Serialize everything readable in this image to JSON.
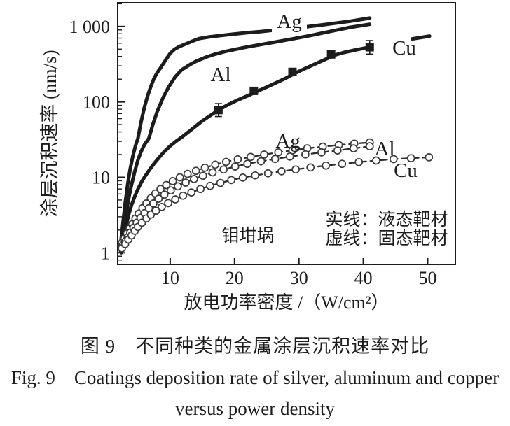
{
  "colors": {
    "ink": "#1c1c1c",
    "marker_stroke": "#3a3a3a",
    "background": "#ffffff"
  },
  "chart_data": {
    "type": "line",
    "title": "",
    "xlabel": "放电功率密度 /（W/cm²）",
    "ylabel": "涂层沉积速率 (nm/s)",
    "x_scale": "linear",
    "y_scale": "log",
    "xlim": [
      1.85,
      54.3
    ],
    "ylim": [
      0.7,
      2060
    ],
    "grid": false,
    "x_ticks": [
      10,
      20,
      30,
      40,
      50
    ],
    "y_ticks": [
      {
        "value": 1000,
        "label": "1 000"
      },
      {
        "value": 100,
        "label": "100"
      },
      {
        "value": 10,
        "label": "10"
      },
      {
        "value": 1,
        "label": "1"
      }
    ],
    "annotation": "钼坩埚",
    "legend": {
      "line1": "实线：液态靶材",
      "line2": "虚线：固态靶材"
    },
    "series": [
      {
        "name": "ag-liquid",
        "label": "Ag",
        "line": "solid",
        "target": "液态靶材",
        "points": [
          [
            2.2,
            1.1
          ],
          [
            2.6,
            2.2
          ],
          [
            3,
            4.5
          ],
          [
            3.4,
            8
          ],
          [
            3.8,
            13
          ],
          [
            4.2,
            19
          ],
          [
            4.6,
            26
          ],
          [
            5,
            33
          ],
          [
            5.5,
            55
          ],
          [
            6,
            85
          ],
          [
            6.5,
            120
          ],
          [
            7,
            160
          ],
          [
            7.5,
            205
          ],
          [
            8,
            245
          ],
          [
            8.6,
            290
          ],
          [
            9.3,
            360
          ],
          [
            10,
            440
          ],
          [
            10.7,
            500
          ],
          [
            11.5,
            545
          ],
          [
            12.5,
            590
          ],
          [
            13.5,
            640
          ],
          [
            14.5,
            690
          ],
          [
            16,
            725
          ],
          [
            18,
            760
          ],
          [
            20,
            795
          ],
          [
            22,
            825
          ],
          [
            24,
            855
          ],
          [
            26,
            890
          ],
          [
            28,
            925
          ],
          [
            30,
            965
          ],
          [
            32,
            1010
          ],
          [
            34,
            1060
          ],
          [
            36,
            1115
          ],
          [
            38,
            1175
          ],
          [
            39.5,
            1230
          ],
          [
            41,
            1290
          ]
        ]
      },
      {
        "name": "al-liquid",
        "label": "Al",
        "line": "solid",
        "target": "液态靶材",
        "points": [
          [
            2.3,
            1.05
          ],
          [
            2.7,
            1.8
          ],
          [
            3.1,
            3
          ],
          [
            3.5,
            5
          ],
          [
            4,
            8
          ],
          [
            4.5,
            12
          ],
          [
            5,
            17
          ],
          [
            5.5,
            22
          ],
          [
            6,
            27
          ],
          [
            6.7,
            33
          ],
          [
            7.3,
            50
          ],
          [
            8,
            75
          ],
          [
            8.9,
            114
          ],
          [
            9.8,
            160
          ],
          [
            10.8,
            215
          ],
          [
            11.8,
            267
          ],
          [
            13,
            310
          ],
          [
            14,
            345
          ],
          [
            15.5,
            390
          ],
          [
            17,
            430
          ],
          [
            18.5,
            465
          ],
          [
            20,
            495
          ],
          [
            22,
            535
          ],
          [
            24,
            575
          ],
          [
            26,
            615
          ],
          [
            28,
            660
          ],
          [
            30,
            710
          ],
          [
            32,
            765
          ],
          [
            34,
            830
          ],
          [
            36,
            900
          ],
          [
            38,
            975
          ],
          [
            39.5,
            1020
          ],
          [
            41,
            1070
          ]
        ]
      },
      {
        "name": "cu-liquid",
        "label": "Cu",
        "line": "solid",
        "target": "液态靶材",
        "points": [
          [
            2.4,
            1.0
          ],
          [
            2.8,
            1.6
          ],
          [
            3.2,
            2.4
          ],
          [
            3.6,
            3.3
          ],
          [
            4,
            4.3
          ],
          [
            4.5,
            5.6
          ],
          [
            5,
            7
          ],
          [
            5.5,
            8.5
          ],
          [
            6,
            10
          ],
          [
            6.7,
            12.3
          ],
          [
            7.4,
            14.8
          ],
          [
            8.2,
            18
          ],
          [
            9,
            21.5
          ],
          [
            10,
            26
          ],
          [
            11,
            30.5
          ],
          [
            11.8,
            34
          ],
          [
            13,
            41
          ],
          [
            14,
            48
          ],
          [
            15,
            56
          ],
          [
            16,
            64
          ],
          [
            17.5,
            78
          ],
          [
            19,
            92
          ],
          [
            20.5,
            106
          ],
          [
            22,
            120
          ],
          [
            23.5,
            138
          ],
          [
            25,
            157
          ],
          [
            26.5,
            180
          ],
          [
            28,
            207
          ],
          [
            29.5,
            242
          ],
          [
            31,
            278
          ],
          [
            32.5,
            318
          ],
          [
            34,
            362
          ],
          [
            35.5,
            415
          ],
          [
            37,
            452
          ],
          [
            38.5,
            482
          ],
          [
            40,
            512
          ],
          [
            41,
            530
          ]
        ],
        "extension": [
          [
            47.6,
            685
          ],
          [
            50.3,
            745
          ]
        ],
        "data_points": [
          {
            "x": 17.5,
            "y": 78,
            "err": [
              64,
              95
            ]
          },
          {
            "x": 23,
            "y": 140
          },
          {
            "x": 29,
            "y": 250
          },
          {
            "x": 35,
            "y": 426
          },
          {
            "x": 41,
            "y": 530,
            "err": [
              430,
              650
            ]
          }
        ]
      },
      {
        "name": "ag-solid-target",
        "label": "Ag",
        "line": "dashed",
        "target": "固态靶材",
        "markers": "circle",
        "points": [
          [
            2.5,
            1.35
          ],
          [
            2.9,
            1.55
          ],
          [
            3.3,
            1.8
          ],
          [
            3.7,
            2.1
          ],
          [
            4.1,
            2.4
          ],
          [
            4.6,
            2.85
          ],
          [
            5.1,
            3.3
          ],
          [
            5.7,
            3.9
          ],
          [
            6.3,
            4.5
          ],
          [
            7,
            5.3
          ],
          [
            7.7,
            6.1
          ],
          [
            8.5,
            7
          ],
          [
            9.4,
            7.9
          ],
          [
            10.4,
            8.9
          ],
          [
            11.5,
            10
          ],
          [
            12.7,
            11.1
          ],
          [
            14,
            12.2
          ],
          [
            15.4,
            13.4
          ],
          [
            17,
            14.7
          ],
          [
            18.7,
            16
          ],
          [
            20.5,
            17.3
          ],
          [
            22.5,
            18.6
          ],
          [
            24.6,
            20
          ],
          [
            26.8,
            21.4
          ],
          [
            29,
            22.8
          ],
          [
            31.3,
            24.2
          ],
          [
            33.7,
            25.5
          ],
          [
            36.2,
            26.8
          ],
          [
            38.6,
            27.9
          ],
          [
            41,
            29
          ]
        ]
      },
      {
        "name": "al-solid-target",
        "label": "Al",
        "line": "dashed",
        "target": "固态靶材",
        "markers": "circle",
        "points": [
          [
            2.6,
            1.25
          ],
          [
            3,
            1.4
          ],
          [
            3.4,
            1.6
          ],
          [
            3.8,
            1.85
          ],
          [
            4.3,
            2.15
          ],
          [
            4.8,
            2.5
          ],
          [
            5.4,
            2.9
          ],
          [
            6,
            3.35
          ],
          [
            6.7,
            3.9
          ],
          [
            7.4,
            4.5
          ],
          [
            8.2,
            5.2
          ],
          [
            9.1,
            5.9
          ],
          [
            10.1,
            6.7
          ],
          [
            11.2,
            7.6
          ],
          [
            12.4,
            8.5
          ],
          [
            13.7,
            9.5
          ],
          [
            15.1,
            10.5
          ],
          [
            16.6,
            11.6
          ],
          [
            18.3,
            12.7
          ],
          [
            20.1,
            13.9
          ],
          [
            22,
            15.1
          ],
          [
            24.1,
            16.3
          ],
          [
            26.3,
            17.5
          ],
          [
            28.6,
            18.8
          ],
          [
            31,
            20.1
          ],
          [
            33.5,
            21.4
          ],
          [
            36,
            22.7
          ],
          [
            38.5,
            24.2
          ],
          [
            41,
            25.8
          ]
        ]
      },
      {
        "name": "cu-solid-target",
        "label": "Cu",
        "line": "dashed",
        "target": "固态靶材",
        "markers": "circle",
        "points": [
          [
            2.5,
            1.15
          ],
          [
            3,
            1.3
          ],
          [
            3.5,
            1.5
          ],
          [
            4,
            1.7
          ],
          [
            4.5,
            1.95
          ],
          [
            5,
            2.2
          ],
          [
            5.6,
            2.5
          ],
          [
            6.3,
            2.85
          ],
          [
            7,
            3.2
          ],
          [
            7.8,
            3.6
          ],
          [
            8.7,
            4.05
          ],
          [
            9.7,
            4.55
          ],
          [
            10.8,
            5.1
          ],
          [
            12,
            5.7
          ],
          [
            13.3,
            6.3
          ],
          [
            14.7,
            7
          ],
          [
            16.2,
            7.7
          ],
          [
            17.8,
            8.4
          ],
          [
            19.5,
            9.2
          ],
          [
            21.3,
            9.9
          ],
          [
            23.2,
            10.6
          ],
          [
            25.2,
            11.3
          ],
          [
            27.3,
            12
          ],
          [
            29.5,
            12.7
          ],
          [
            31.8,
            13.5
          ],
          [
            34.2,
            14.3
          ],
          [
            36.7,
            15.1
          ],
          [
            39.3,
            15.9
          ],
          [
            42,
            16.7
          ],
          [
            44.7,
            17.4
          ],
          [
            47.4,
            17.9
          ],
          [
            50.2,
            18.4
          ]
        ]
      }
    ]
  },
  "caption": {
    "zh": "图 9　不同种类的金属涂层沉积速率对比",
    "en_line1": "Fig. 9　Coatings deposition rate of silver, aluminum and copper",
    "en_line2": "versus power density"
  }
}
